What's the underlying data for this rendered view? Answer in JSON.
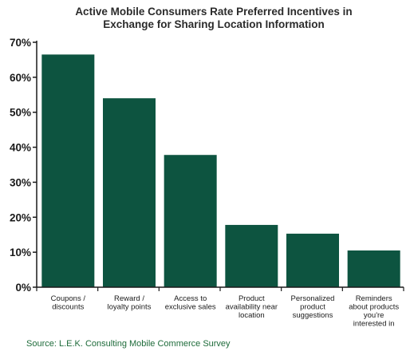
{
  "chart_data": {
    "type": "bar",
    "title": [
      "Active Mobile Consumers Rate Preferred Incentives in",
      "Exchange for Sharing Location Information"
    ],
    "categories": [
      [
        "Coupons /",
        "discounts"
      ],
      [
        "Reward /",
        "loyalty points"
      ],
      [
        "Access to",
        "exclusive sales"
      ],
      [
        "Product",
        "availability near",
        "location"
      ],
      [
        "Personalized",
        "product",
        "suggestions"
      ],
      [
        "Reminders",
        "about products",
        "you're",
        "interested in"
      ]
    ],
    "values": [
      66.5,
      54,
      37.8,
      17.8,
      15.3,
      10.5
    ],
    "ylim": [
      0,
      70
    ],
    "yticks": [
      0,
      10,
      20,
      30,
      40,
      50,
      60,
      70
    ],
    "ytick_labels": [
      "0%",
      "10%",
      "20%",
      "30%",
      "40%",
      "50%",
      "60%",
      "70%"
    ],
    "xlabel": "",
    "ylabel": "",
    "grid": false,
    "bar_color": "#0d5440",
    "source": "Source: L.E.K. Consulting Mobile Commerce Survey",
    "source_color": "#1e6b3a"
  }
}
